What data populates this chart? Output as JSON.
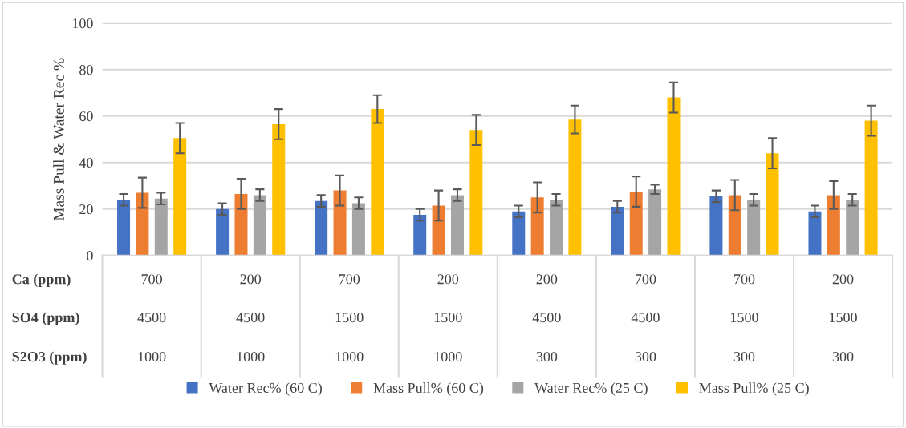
{
  "chart_data": {
    "type": "bar",
    "ylabel": "Mass Pull & Water Rec %",
    "categories": [
      "700\n4500\n1000",
      "200\n4500\n1000",
      "700\n1500\n1000",
      "200\n1500\n1000",
      "200\n4500\n300",
      "700\n4500\n300",
      "700\n1500\n300",
      "200\n1500\n300"
    ],
    "annotations": [
      "Ca (ppm)",
      "SO4 (ppm)",
      "S2O3 (ppm)"
    ],
    "series": [
      {
        "name": "Water Rec% (60 C)",
        "color": "#4472c4",
        "values": [
          24,
          20,
          23.5,
          17.5,
          19,
          21,
          25.5,
          19
        ],
        "errors": [
          2.5,
          2.5,
          2.5,
          2.5,
          2.5,
          2.5,
          2.5,
          2.5
        ]
      },
      {
        "name": "Mass Pull% (60 C)",
        "color": "#ed7d31",
        "values": [
          27,
          26.5,
          28,
          21.5,
          25,
          27.5,
          26,
          26
        ],
        "errors": [
          6.5,
          6.5,
          6.5,
          6.5,
          6.5,
          6.5,
          6.5,
          6
        ]
      },
      {
        "name": "Water Rec% (25 C)",
        "color": "#a5a5a5",
        "values": [
          24.5,
          26,
          22.5,
          26,
          24,
          28.5,
          24,
          24
        ],
        "errors": [
          2.5,
          2.5,
          2.5,
          2.5,
          2.5,
          2,
          2.5,
          2.5
        ]
      },
      {
        "name": "Mass Pull% (25 C)",
        "color": "#ffc000",
        "values": [
          50.5,
          56.5,
          63,
          54,
          58.5,
          68,
          44,
          58
        ],
        "errors": [
          6.5,
          6.5,
          6,
          6.5,
          6,
          6.5,
          6.5,
          6.5
        ]
      }
    ],
    "ylim": [
      0,
      100
    ],
    "yticks": [
      0,
      20,
      40,
      60,
      80,
      100
    ],
    "grid": "y",
    "legend": "bottom"
  }
}
